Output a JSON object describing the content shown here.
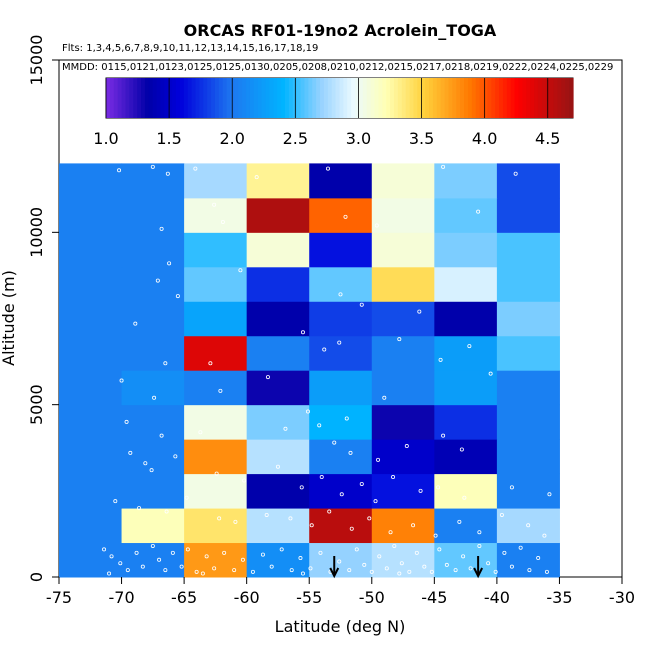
{
  "chart_data": {
    "type": "heatmap",
    "title": "ORCAS RF01-19no2 Acrolein_TOGA",
    "flights_text": "Flts: 1,3,4,5,6,7,8,9,10,11,12,13,14,15,16,17,18,19",
    "mmdd_text": "MMDD: 0115,0121,0123,0125,0125,0130,0205,0208,0210,0212,0215,0217,0218,0219,0222,0224,0225,0229",
    "xlabel": "Latitude (deg N)",
    "ylabel": "Altitude (m)",
    "xlim": [
      -75,
      -30
    ],
    "ylim": [
      0,
      15000
    ],
    "x_ticks": [
      -75,
      -70,
      -65,
      -60,
      -55,
      -50,
      -45,
      -40,
      -35,
      -30
    ],
    "y_ticks": [
      0,
      5000,
      10000,
      15000
    ],
    "colorbar": {
      "range": [
        1.0,
        4.7
      ],
      "ticks": [
        1.0,
        1.5,
        2.0,
        2.5,
        3.0,
        3.5,
        4.0,
        4.5
      ],
      "tick_labels": [
        "1.0",
        "1.5",
        "2.0",
        "2.5",
        "3.0",
        "3.5",
        "4.0",
        "4.5"
      ]
    },
    "x_edges": [
      -75,
      -70,
      -65,
      -60,
      -55,
      -50,
      -45,
      -40,
      -35
    ],
    "y_edges": [
      0,
      1000,
      2000,
      3000,
      4000,
      5000,
      6000,
      7000,
      8000,
      9000,
      10000,
      11000,
      12000
    ],
    "values": [
      [
        2.05,
        2.05,
        3.75,
        2.15,
        2.7,
        2.8,
        2.6,
        2.05
      ],
      [
        2.05,
        3.2,
        3.4,
        2.8,
        4.55,
        3.85,
        2.05,
        2.75
      ],
      [
        2.05,
        2.05,
        3.05,
        1.35,
        1.5,
        1.65,
        3.2,
        2.05
      ],
      [
        2.05,
        2.05,
        3.8,
        2.8,
        2.05,
        1.5,
        1.4,
        2.05
      ],
      [
        2.05,
        2.05,
        3.05,
        2.65,
        2.4,
        1.3,
        1.75,
        2.05
      ],
      [
        2.05,
        2.15,
        2.05,
        1.3,
        2.25,
        2.05,
        2.25,
        2.05
      ],
      [
        2.05,
        2.05,
        4.4,
        2.05,
        1.85,
        2.05,
        2.25,
        2.55
      ],
      [
        2.05,
        2.05,
        2.3,
        1.35,
        1.8,
        1.85,
        1.35,
        2.65
      ],
      [
        2.05,
        2.05,
        2.6,
        1.75,
        2.6,
        3.45,
        2.9,
        2.55
      ],
      [
        2.05,
        2.05,
        2.5,
        3.1,
        1.65,
        3.1,
        2.65,
        2.55
      ],
      [
        2.05,
        2.05,
        3.05,
        4.6,
        3.95,
        3.05,
        2.6,
        1.85
      ],
      [
        2.05,
        2.05,
        2.75,
        3.3,
        1.35,
        3.1,
        2.65,
        1.85
      ]
    ],
    "markers": [
      {
        "lat": -53,
        "alt": 0
      },
      {
        "lat": -41.5,
        "alt": 0
      }
    ]
  },
  "scatter_points": [
    [
      -70.2,
      11800
    ],
    [
      -67.5,
      11900
    ],
    [
      -66.3,
      11700
    ],
    [
      -64.1,
      11850
    ],
    [
      -59.2,
      11600
    ],
    [
      -53.5,
      11850
    ],
    [
      -44.3,
      11900
    ],
    [
      -38.5,
      11700
    ],
    [
      -66.8,
      10100
    ],
    [
      -62.6,
      10800
    ],
    [
      -61.9,
      10300
    ],
    [
      -52.1,
      10450
    ],
    [
      -49.6,
      10200
    ],
    [
      -41.5,
      10600
    ],
    [
      -66.2,
      9100
    ],
    [
      -60.5,
      8900
    ],
    [
      -52.5,
      8200
    ],
    [
      -50.8,
      7900
    ],
    [
      -46.2,
      7700
    ],
    [
      -67.1,
      8600
    ],
    [
      -65.5,
      8150
    ],
    [
      -68.9,
      7350
    ],
    [
      -55.5,
      7100
    ],
    [
      -53.8,
      6600
    ],
    [
      -66.5,
      6200
    ],
    [
      -62.9,
      6200
    ],
    [
      -52.6,
      6800
    ],
    [
      -47.8,
      6900
    ],
    [
      -44.5,
      6300
    ],
    [
      -42.2,
      6700
    ],
    [
      -70.0,
      5700
    ],
    [
      -67.4,
      5200
    ],
    [
      -62.1,
      5400
    ],
    [
      -58.3,
      5800
    ],
    [
      -55.1,
      4800
    ],
    [
      -52.0,
      4600
    ],
    [
      -49.0,
      5200
    ],
    [
      -40.5,
      5900
    ],
    [
      -69.6,
      4500
    ],
    [
      -66.8,
      4100
    ],
    [
      -63.7,
      4200
    ],
    [
      -56.9,
      4300
    ],
    [
      -54.2,
      4400
    ],
    [
      -53.0,
      3900
    ],
    [
      -51.7,
      3600
    ],
    [
      -49.5,
      3400
    ],
    [
      -47.2,
      3800
    ],
    [
      -44.3,
      4100
    ],
    [
      -42.8,
      3700
    ],
    [
      -69.3,
      3600
    ],
    [
      -68.1,
      3300
    ],
    [
      -67.6,
      3100
    ],
    [
      -65.7,
      3500
    ],
    [
      -62.4,
      3000
    ],
    [
      -60.2,
      2800
    ],
    [
      -57.5,
      3200
    ],
    [
      -55.6,
      2600
    ],
    [
      -54.0,
      2900
    ],
    [
      -52.4,
      2400
    ],
    [
      -50.8,
      2700
    ],
    [
      -49.7,
      2200
    ],
    [
      -48.3,
      2900
    ],
    [
      -46.1,
      2500
    ],
    [
      -44.7,
      2600
    ],
    [
      -42.6,
      2300
    ],
    [
      -38.8,
      2600
    ],
    [
      -35.8,
      2400
    ],
    [
      -70.5,
      2200
    ],
    [
      -68.6,
      2000
    ],
    [
      -66.4,
      1900
    ],
    [
      -64.8,
      2300
    ],
    [
      -62.2,
      1700
    ],
    [
      -60.9,
      1600
    ],
    [
      -58.4,
      1800
    ],
    [
      -56.5,
      1700
    ],
    [
      -54.8,
      1500
    ],
    [
      -53.4,
      1900
    ],
    [
      -51.6,
      1400
    ],
    [
      -50.2,
      1700
    ],
    [
      -48.5,
      1300
    ],
    [
      -46.7,
      1500
    ],
    [
      -44.9,
      1200
    ],
    [
      -43.0,
      1600
    ],
    [
      -41.4,
      1300
    ],
    [
      -39.6,
      1800
    ],
    [
      -37.5,
      1500
    ],
    [
      -36.2,
      1200
    ],
    [
      -71.4,
      800
    ],
    [
      -70.8,
      600
    ],
    [
      -70.1,
      400
    ],
    [
      -69.5,
      200
    ],
    [
      -68.8,
      700
    ],
    [
      -68.3,
      300
    ],
    [
      -67.5,
      900
    ],
    [
      -67.0,
      500
    ],
    [
      -66.5,
      200
    ],
    [
      -65.9,
      700
    ],
    [
      -65.2,
      300
    ],
    [
      -64.7,
      800
    ],
    [
      -64.0,
      150
    ],
    [
      -63.2,
      600
    ],
    [
      -62.6,
      250
    ],
    [
      -61.8,
      700
    ],
    [
      -61.0,
      200
    ],
    [
      -60.3,
      500
    ],
    [
      -59.5,
      150
    ],
    [
      -58.7,
      650
    ],
    [
      -58.0,
      300
    ],
    [
      -57.2,
      800
    ],
    [
      -56.4,
      200
    ],
    [
      -55.7,
      550
    ],
    [
      -54.9,
      250
    ],
    [
      -54.1,
      700
    ],
    [
      -53.3,
      150
    ],
    [
      -52.6,
      450
    ],
    [
      -51.8,
      200
    ],
    [
      -51.2,
      800
    ],
    [
      -50.6,
      350
    ],
    [
      -50.0,
      150
    ],
    [
      -49.4,
      600
    ],
    [
      -48.8,
      250
    ],
    [
      -48.2,
      900
    ],
    [
      -47.6,
      400
    ],
    [
      -47.0,
      150
    ],
    [
      -46.4,
      700
    ],
    [
      -45.8,
      300
    ],
    [
      -45.2,
      150
    ],
    [
      -44.6,
      800
    ],
    [
      -44.0,
      350
    ],
    [
      -43.3,
      200
    ],
    [
      -42.7,
      600
    ],
    [
      -42.1,
      250
    ],
    [
      -41.4,
      900
    ],
    [
      -40.7,
      400
    ],
    [
      -40.1,
      150
    ],
    [
      -39.4,
      700
    ],
    [
      -38.8,
      300
    ],
    [
      -38.1,
      850
    ],
    [
      -37.4,
      200
    ],
    [
      -36.7,
      550
    ],
    [
      -36.0,
      150
    ],
    [
      -71.0,
      100
    ],
    [
      -63.5,
      100
    ],
    [
      -55.5,
      100
    ],
    [
      -47.8,
      100
    ]
  ]
}
